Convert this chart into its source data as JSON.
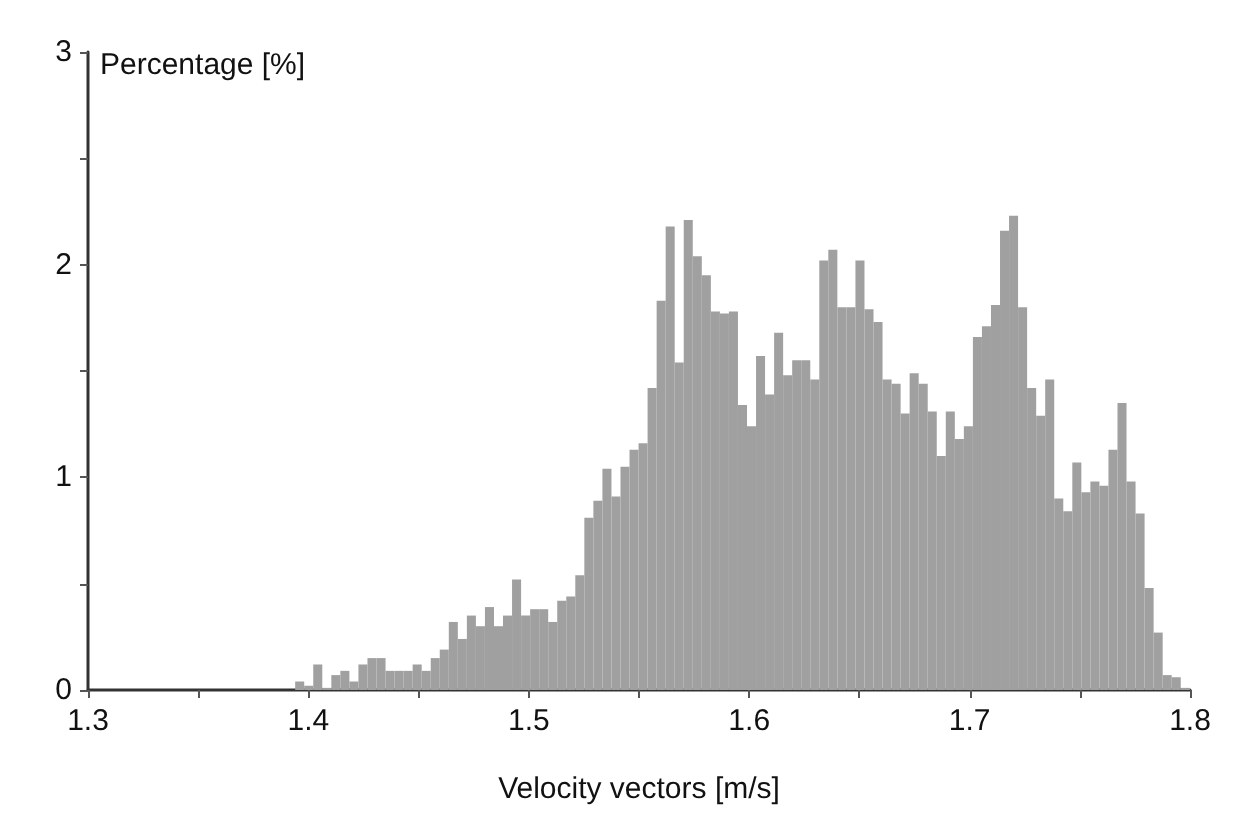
{
  "chart_data": {
    "type": "histogram",
    "xlabel": "Velocity vectors [m/s]",
    "ylabel": "Percentage [%]",
    "color": "#a0a0a0",
    "bins": [
      1.394,
      1.3981,
      1.4022,
      1.4063,
      1.4104,
      1.4145,
      1.4186,
      1.4227,
      1.4268,
      1.4309,
      1.435,
      1.4391,
      1.4432,
      1.4473,
      1.4514,
      1.4555,
      1.4596,
      1.4637,
      1.4678,
      1.4719,
      1.476,
      1.4801,
      1.4842,
      1.4883,
      1.4924,
      1.4965,
      1.5006,
      1.5047,
      1.5088,
      1.5129,
      1.517,
      1.5211,
      1.5252,
      1.5293,
      1.5334,
      1.5375,
      1.5416,
      1.5457,
      1.5498,
      1.5539,
      1.558,
      1.5621,
      1.5662,
      1.5703,
      1.5744,
      1.5785,
      1.5826,
      1.5867,
      1.5908,
      1.5949,
      1.599,
      1.6031,
      1.6072,
      1.6113,
      1.6154,
      1.6195,
      1.6236,
      1.6277,
      1.6318,
      1.6359,
      1.64,
      1.6441,
      1.6482,
      1.6523,
      1.6564,
      1.6605,
      1.6646,
      1.6687,
      1.6728,
      1.6769,
      1.681,
      1.6851,
      1.6892,
      1.6933,
      1.6974,
      1.7015,
      1.7056,
      1.7097,
      1.7138,
      1.7179,
      1.722,
      1.7261,
      1.7302,
      1.7343,
      1.7384,
      1.7425,
      1.7466,
      1.7507,
      1.7548,
      1.7589,
      1.763,
      1.7671,
      1.7712,
      1.7753,
      1.7794,
      1.7835,
      1.7876,
      1.7917,
      1.7958,
      1.8
    ],
    "values": [
      0.04,
      0.02,
      0.12,
      0.01,
      0.07,
      0.09,
      0.04,
      0.12,
      0.15,
      0.15,
      0.09,
      0.09,
      0.09,
      0.12,
      0.09,
      0.15,
      0.19,
      0.32,
      0.24,
      0.35,
      0.3,
      0.39,
      0.3,
      0.35,
      0.52,
      0.35,
      0.38,
      0.38,
      0.32,
      0.42,
      0.44,
      0.54,
      0.81,
      0.89,
      1.04,
      0.91,
      1.05,
      1.13,
      1.16,
      1.42,
      1.83,
      2.18,
      1.54,
      2.21,
      2.04,
      1.95,
      1.78,
      1.77,
      1.78,
      1.34,
      1.24,
      1.57,
      1.39,
      1.68,
      1.48,
      1.55,
      1.55,
      1.46,
      2.02,
      2.07,
      1.8,
      1.8,
      2.02,
      1.79,
      1.73,
      1.46,
      1.44,
      1.3,
      1.49,
      1.44,
      1.31,
      1.1,
      1.31,
      1.18,
      1.24,
      1.66,
      1.71,
      1.81,
      2.16,
      2.23,
      1.8,
      1.42,
      1.29,
      1.46,
      0.9,
      0.84,
      1.07,
      0.93,
      0.98,
      0.96,
      1.13,
      1.35,
      0.98,
      0.83,
      0.48,
      0.27,
      0.07,
      0.06,
      0.01
    ],
    "xlim": [
      1.3,
      1.8
    ],
    "xticks": [
      1.3,
      {
        "value": 1.35,
        "label": null
      },
      1.4,
      {
        "value": 1.45,
        "label": null
      },
      1.5,
      {
        "value": 1.55,
        "label": null
      },
      1.6,
      {
        "value": 1.65,
        "label": null
      },
      1.7,
      {
        "value": 1.75,
        "label": null
      },
      1.8
    ],
    "ylim": [
      0,
      3
    ],
    "yticks": [
      0,
      {
        "value": 0.5,
        "label": null
      },
      1,
      {
        "value": 1.5,
        "label": null
      },
      2,
      {
        "value": 2.5,
        "label": null
      },
      3
    ],
    "grid": false
  }
}
